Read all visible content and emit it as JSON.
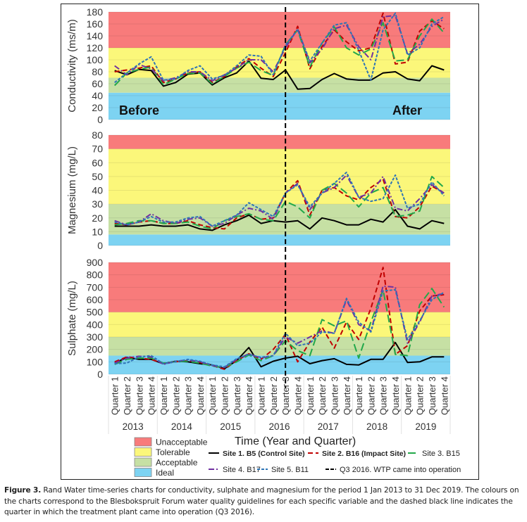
{
  "figure": {
    "caption_label": "Figure 3.",
    "caption_text": " Rand Water time-series charts for conductivity, sulphate and magnesium for the period 1 Jan 2013 to 31 Dec 2019. The colours on the charts correspond to the Blesbokspruit Forum water quality guidelines for each specific variable and the dashed black line indicates the quarter in which the treatment plant came into operation (Q3 2016)."
  },
  "colors": {
    "unacceptable": "#F87B7B",
    "tolerable": "#FBF77A",
    "acceptable": "#C6E0A4",
    "ideal": "#7DD3F2",
    "site1": "#000000",
    "site2": "#C00000",
    "site3": "#22A84A",
    "site4": "#7030A0",
    "site5": "#2E75B6",
    "event": "#000000"
  },
  "chart_data": [
    {
      "type": "line",
      "id": "conductivity",
      "ylabel": "Conductivity (ms/m)",
      "ylim": [
        0,
        180
      ],
      "yticks": [
        0,
        20,
        40,
        60,
        80,
        100,
        120,
        140,
        160,
        180
      ],
      "bands": [
        {
          "name": "Ideal",
          "from": 0,
          "to": 45
        },
        {
          "name": "Acceptable",
          "from": 45,
          "to": 70
        },
        {
          "name": "Tolerable",
          "from": 70,
          "to": 120
        },
        {
          "name": "Unacceptable",
          "from": 120,
          "to": 180
        }
      ],
      "annotations": [
        {
          "text": "Before",
          "position": "bottom-left"
        },
        {
          "text": "After",
          "position": "bottom-right"
        }
      ],
      "series": [
        {
          "name": "Site 1. B5 (Control Site)",
          "values": [
            82,
            75,
            84,
            82,
            56,
            62,
            76,
            78,
            58,
            70,
            78,
            98,
            69,
            67,
            83,
            51,
            52,
            67,
            77,
            68,
            66,
            66,
            78,
            80,
            68,
            65,
            90,
            83
          ]
        },
        {
          "name": "Site 2. B16 (Impact Site)",
          "values": [
            80,
            83,
            86,
            90,
            62,
            68,
            78,
            80,
            62,
            72,
            88,
            102,
            86,
            72,
            112,
            156,
            85,
            122,
            150,
            130,
            115,
            120,
            178,
            93,
            96,
            148,
            165,
            152
          ]
        },
        {
          "name": "Site 3. B15",
          "values": [
            57,
            78,
            84,
            88,
            58,
            68,
            77,
            78,
            60,
            72,
            86,
            96,
            82,
            74,
            125,
            150,
            88,
            128,
            155,
            120,
            108,
            118,
            162,
            98,
            100,
            140,
            168,
            145
          ]
        },
        {
          "name": "Site 4. B17",
          "values": [
            90,
            75,
            92,
            85,
            65,
            70,
            80,
            80,
            65,
            75,
            86,
            100,
            100,
            80,
            120,
            152,
            95,
            118,
            152,
            158,
            122,
            100,
            172,
            174,
            110,
            126,
            156,
            168
          ]
        },
        {
          "name": "Site 5. B11",
          "values": [
            62,
            78,
            93,
            105,
            66,
            68,
            82,
            90,
            68,
            74,
            90,
            108,
            106,
            75,
            125,
            150,
            98,
            128,
            158,
            162,
            116,
            66,
            150,
            178,
            108,
            120,
            160,
            172
          ]
        }
      ]
    },
    {
      "type": "line",
      "id": "magnesium",
      "ylabel": "Magnesium (mg/L)",
      "ylim": [
        0,
        80
      ],
      "yticks": [
        0,
        10,
        20,
        30,
        40,
        50,
        60,
        70,
        80
      ],
      "bands": [
        {
          "name": "Ideal",
          "from": 0,
          "to": 8
        },
        {
          "name": "Acceptable",
          "from": 8,
          "to": 30
        },
        {
          "name": "Tolerable",
          "from": 30,
          "to": 70
        },
        {
          "name": "Unacceptable",
          "from": 70,
          "to": 80
        }
      ],
      "series": [
        {
          "name": "Site 1. B5 (Control Site)",
          "values": [
            14,
            14,
            14,
            15,
            14,
            14,
            15,
            12,
            11,
            15,
            18,
            22,
            16,
            18,
            17,
            18,
            12,
            20,
            18,
            15,
            15,
            19,
            17,
            26,
            14,
            12,
            18,
            16
          ]
        },
        {
          "name": "Site 2. B16 (Impact Site)",
          "values": [
            16,
            15,
            17,
            18,
            16,
            16,
            18,
            15,
            13,
            12,
            20,
            23,
            19,
            20,
            38,
            47,
            22,
            40,
            42,
            36,
            33,
            42,
            48,
            21,
            20,
            28,
            43,
            38
          ]
        },
        {
          "name": "Site 3. B15",
          "values": [
            15,
            16,
            18,
            18,
            16,
            16,
            17,
            14,
            12,
            18,
            21,
            23,
            19,
            18,
            32,
            28,
            20,
            40,
            45,
            38,
            28,
            38,
            42,
            21,
            22,
            25,
            50,
            42
          ]
        },
        {
          "name": "Site 4. B17",
          "values": [
            18,
            15,
            17,
            23,
            18,
            16,
            19,
            20,
            14,
            16,
            22,
            27,
            25,
            19,
            38,
            45,
            26,
            38,
            42,
            51,
            35,
            38,
            50,
            27,
            25,
            34,
            44,
            38
          ]
        },
        {
          "name": "Site 5. B11",
          "values": [
            17,
            15,
            17,
            21,
            17,
            17,
            20,
            21,
            14,
            18,
            22,
            31,
            26,
            21,
            38,
            44,
            28,
            38,
            45,
            53,
            35,
            32,
            34,
            51,
            27,
            30,
            46,
            36
          ]
        }
      ]
    },
    {
      "type": "line",
      "id": "sulphate",
      "ylabel": "Sulphate (mg/L)",
      "ylim": [
        0,
        900
      ],
      "yticks": [
        0,
        100,
        200,
        300,
        400,
        500,
        600,
        700,
        800,
        900
      ],
      "bands": [
        {
          "name": "Ideal",
          "from": 0,
          "to": 150
        },
        {
          "name": "Acceptable",
          "from": 150,
          "to": 300
        },
        {
          "name": "Tolerable",
          "from": 300,
          "to": 500
        },
        {
          "name": "Unacceptable",
          "from": 500,
          "to": 900
        }
      ],
      "series": [
        {
          "name": "Site 1. B5 (Control Site)",
          "values": [
            90,
            135,
            120,
            120,
            85,
            105,
            100,
            85,
            75,
            45,
            110,
            215,
            60,
            105,
            130,
            145,
            85,
            110,
            125,
            80,
            75,
            120,
            120,
            255,
            95,
            100,
            140,
            140
          ]
        },
        {
          "name": "Site 2. B16 (Impact Site)",
          "values": [
            100,
            140,
            130,
            120,
            85,
            100,
            110,
            95,
            70,
            40,
            110,
            165,
            120,
            200,
            320,
            100,
            260,
            380,
            210,
            420,
            280,
            530,
            860,
            160,
            230,
            510,
            630,
            640
          ]
        },
        {
          "name": "Site 3. B15",
          "values": [
            80,
            120,
            130,
            130,
            90,
            100,
            105,
            90,
            65,
            55,
            100,
            155,
            110,
            150,
            270,
            190,
            150,
            440,
            390,
            430,
            130,
            420,
            680,
            160,
            150,
            560,
            690,
            540
          ]
        },
        {
          "name": "Site 4. B17",
          "values": [
            90,
            130,
            145,
            140,
            80,
            105,
            115,
            100,
            70,
            55,
            120,
            165,
            130,
            150,
            300,
            250,
            300,
            350,
            330,
            600,
            400,
            350,
            710,
            700,
            250,
            420,
            630,
            650
          ]
        },
        {
          "name": "Site 5. B11",
          "values": [
            85,
            90,
            140,
            150,
            85,
            100,
            120,
            105,
            75,
            60,
            125,
            160,
            135,
            150,
            330,
            230,
            250,
            340,
            330,
            610,
            420,
            340,
            670,
            680,
            280,
            430,
            600,
            660
          ]
        }
      ]
    }
  ],
  "xaxis": {
    "title": "Time (Year and Quarter)",
    "quarters": [
      "Quarter 1",
      "Quarter 2",
      "Quarter 3",
      "Quarter 4"
    ],
    "years": [
      "2013",
      "2014",
      "2015",
      "2016",
      "2017",
      "2018",
      "2019"
    ],
    "event_index": 14
  },
  "legend": {
    "bands": [
      "Unacceptable",
      "Tolerable",
      "Acceptable",
      "Ideal"
    ],
    "series": [
      {
        "label": "Site 1. B5 (Control Site)",
        "bold": true
      },
      {
        "label": "Site 2. B16 (Impact Site)",
        "bold": true
      },
      {
        "label": "Site 3. B15",
        "bold": false
      },
      {
        "label": "Site 4. B17",
        "bold": false
      },
      {
        "label": "Site 5. B11",
        "bold": false
      },
      {
        "label": "Q3 2016. WTP came into operation",
        "bold": false
      }
    ]
  }
}
